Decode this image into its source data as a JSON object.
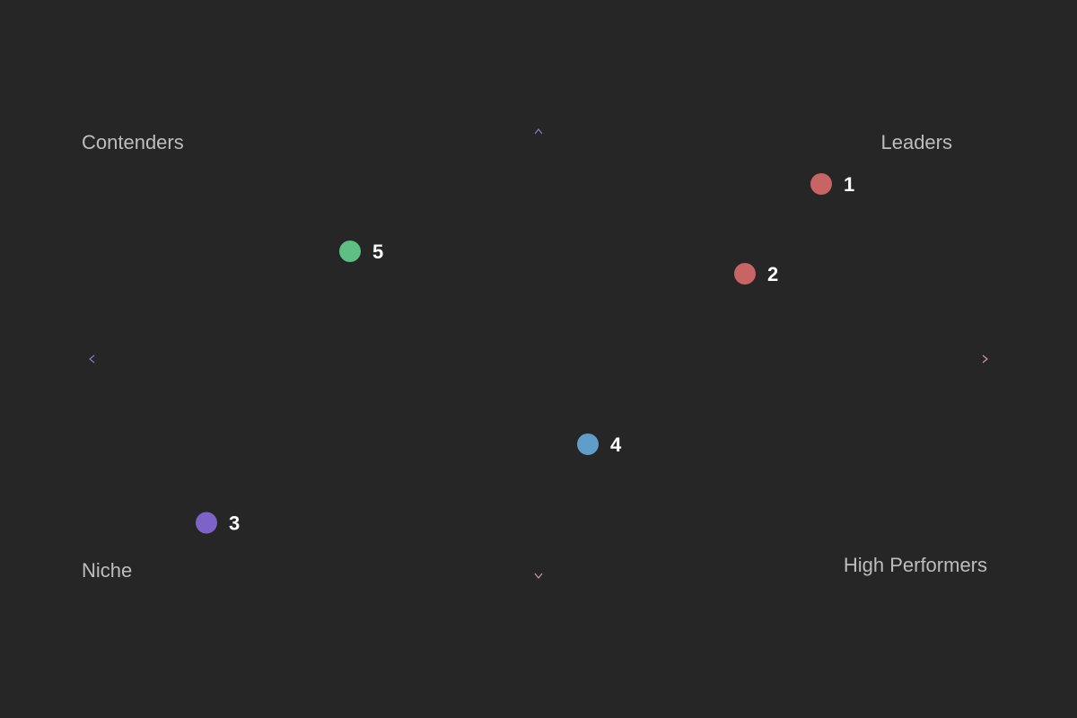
{
  "chart_data": {
    "type": "scatter",
    "xlim": [
      -1,
      1
    ],
    "ylim": [
      -1,
      1
    ],
    "grid": false,
    "quadrants": {
      "top_left": "Contenders",
      "top_right": "Leaders",
      "bottom_left": "Niche",
      "bottom_right": "High Performers"
    },
    "points": [
      {
        "label": "1",
        "x": 0.63,
        "y": 0.78,
        "color": "#c86464"
      },
      {
        "label": "2",
        "x": 0.46,
        "y": 0.38,
        "color": "#c86464"
      },
      {
        "label": "3",
        "x": -0.74,
        "y": -0.73,
        "color": "#7b63c8"
      },
      {
        "label": "4",
        "x": 0.11,
        "y": -0.38,
        "color": "#5f9ec8"
      },
      {
        "label": "5",
        "x": -0.42,
        "y": 0.48,
        "color": "#5fbf82"
      }
    ]
  },
  "colors": {
    "background": "#262626",
    "axis_start": "#8a7bc9",
    "axis_end": "#c99ab0",
    "quadrant_label": "#bdbdbd",
    "point_label": "#ffffff"
  }
}
